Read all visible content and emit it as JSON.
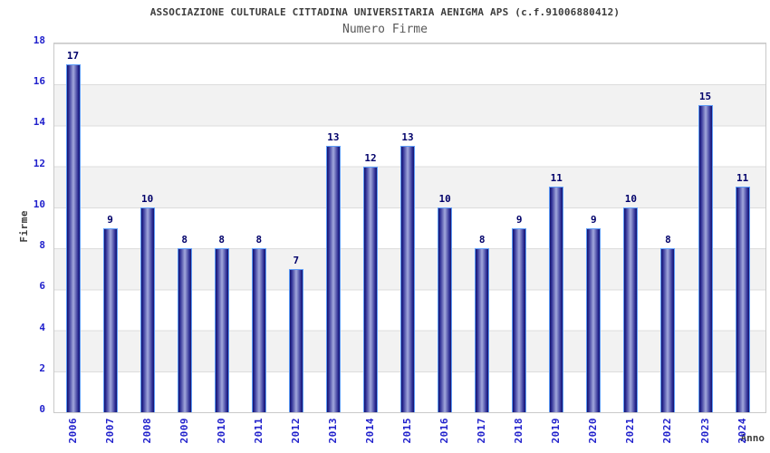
{
  "chart_data": {
    "type": "bar",
    "title": "ASSOCIAZIONE CULTURALE CITTADINA UNIVERSITARIA AENIGMA APS (c.f.91006880412)",
    "subtitle": "Numero Firme",
    "xlabel": "Anno",
    "ylabel": "Firme",
    "categories": [
      "2006",
      "2007",
      "2008",
      "2009",
      "2010",
      "2011",
      "2012",
      "2013",
      "2014",
      "2015",
      "2016",
      "2017",
      "2018",
      "2019",
      "2020",
      "2021",
      "2022",
      "2023",
      "2024"
    ],
    "values": [
      17,
      9,
      10,
      8,
      8,
      8,
      7,
      13,
      12,
      13,
      10,
      8,
      9,
      11,
      9,
      10,
      8,
      15,
      11
    ],
    "ylim": [
      0,
      18
    ],
    "ytick_step": 2,
    "yticks": [
      0,
      2,
      4,
      6,
      8,
      10,
      12,
      14,
      16,
      18
    ],
    "grid": "horizontal-bands-every-2-units",
    "legend": "none",
    "bar_value_labels_shown": true,
    "x_tick_labels_rotated_vertical": true,
    "colors": {
      "title": "#3c3c3c",
      "subtitle": "#585858",
      "axis_label": "#3c3c3c",
      "tick_label": "#2121cc",
      "value_label": "#00006a",
      "band": "#f2f2f2",
      "border": "#c9c9c9",
      "gridline": "#dcdcdc",
      "bar_outline": "#5e9cf7",
      "bar_edge": "#14146a",
      "bar_body": "#2a2a92",
      "bar_highlight": "#a2a8dc"
    }
  }
}
